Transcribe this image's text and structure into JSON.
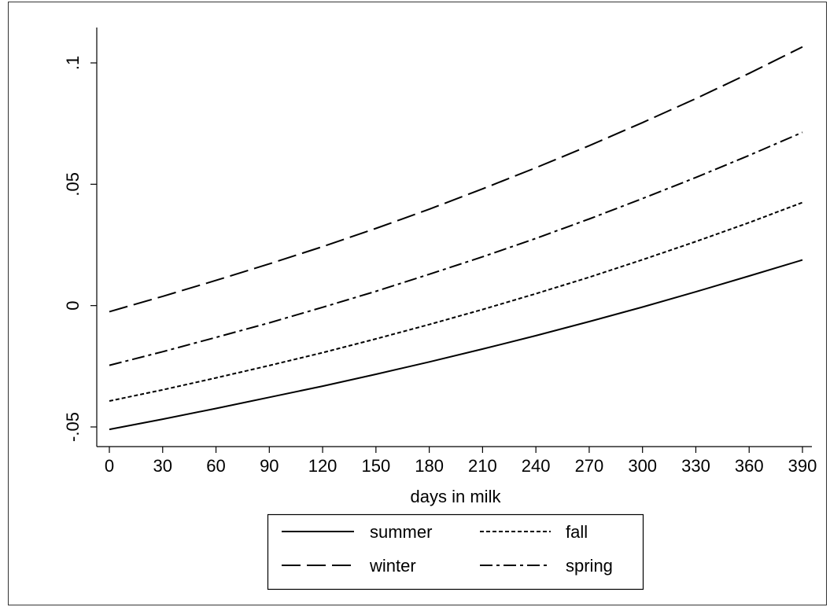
{
  "chart_data": {
    "type": "line",
    "title": "",
    "xlabel": "days in milk",
    "ylabel": "",
    "xlim": [
      0,
      390
    ],
    "ylim": [
      -0.05,
      0.1
    ],
    "x_ticks": [
      0,
      30,
      60,
      90,
      120,
      150,
      180,
      210,
      240,
      270,
      300,
      330,
      360,
      390
    ],
    "x_tick_labels": [
      "0",
      "30",
      "60",
      "90",
      "120",
      "150",
      "180",
      "210",
      "240",
      "270",
      "300",
      "330",
      "360",
      "390"
    ],
    "y_ticks": [
      -0.05,
      0,
      0.05,
      0.1
    ],
    "y_tick_labels": [
      "-.05",
      "0",
      ".05",
      ".1"
    ],
    "grid": false,
    "legend_position": "bottom",
    "x": [
      0,
      30,
      60,
      90,
      120,
      150,
      180,
      210,
      240,
      270,
      300,
      330,
      360,
      390
    ],
    "series": [
      {
        "name": "summer",
        "style": "solid",
        "values": [
          -0.051,
          -0.0468,
          -0.0424,
          -0.0378,
          -0.0332,
          -0.0283,
          -0.0232,
          -0.0179,
          -0.0124,
          -0.0066,
          -0.0006,
          0.0057,
          0.0122,
          0.0188
        ]
      },
      {
        "name": "fall",
        "style": "dotted",
        "values": [
          -0.0393,
          -0.0347,
          -0.0298,
          -0.0247,
          -0.0194,
          -0.0137,
          -0.0078,
          -0.0016,
          0.0049,
          0.0117,
          0.0189,
          0.0264,
          0.0342,
          0.0425
        ]
      },
      {
        "name": "winter",
        "style": "longdash",
        "values": [
          -0.0025,
          0.0038,
          0.0104,
          0.0172,
          0.0243,
          0.0318,
          0.0397,
          0.0481,
          0.0568,
          0.0659,
          0.0754,
          0.0853,
          0.0957,
          0.1066
        ]
      },
      {
        "name": "spring",
        "style": "dashdot",
        "values": [
          -0.0246,
          -0.019,
          -0.0131,
          -0.0071,
          -0.0007,
          0.0059,
          0.0129,
          0.0201,
          0.0277,
          0.0357,
          0.0441,
          0.0528,
          0.0619,
          0.0714
        ]
      }
    ]
  }
}
